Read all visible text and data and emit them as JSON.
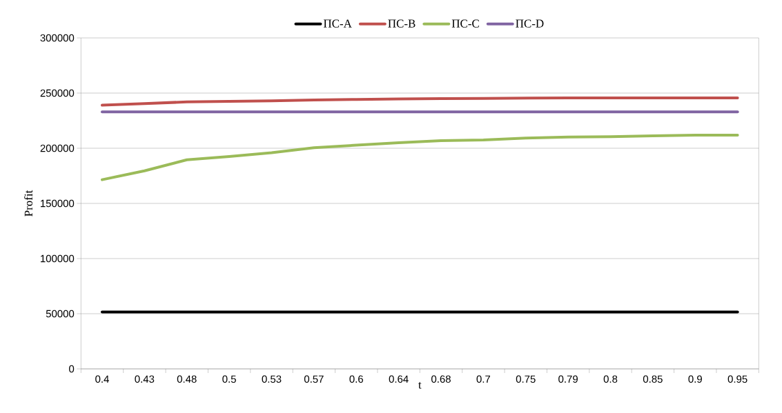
{
  "chart_data": {
    "type": "line",
    "xlabel": "t",
    "ylabel": "Profit",
    "categories": [
      "0.4",
      "0.43",
      "0.48",
      "0.5",
      "0.53",
      "0.57",
      "0.6",
      "0.64",
      "0.68",
      "0.7",
      "0.75",
      "0.79",
      "0.8",
      "0.85",
      "0.9",
      "0.95"
    ],
    "series": [
      {
        "name": "ПС-A",
        "color": "#000000",
        "values": [
          51500,
          51500,
          51500,
          51500,
          51500,
          51500,
          51500,
          51500,
          51500,
          51500,
          51500,
          51500,
          51500,
          51500,
          51500,
          51500
        ]
      },
      {
        "name": "ПС-B",
        "color": "#c0504d",
        "values": [
          239000,
          240500,
          242000,
          242500,
          243000,
          243800,
          244200,
          244700,
          245000,
          245200,
          245400,
          245600,
          245700,
          245700,
          245700,
          245700
        ]
      },
      {
        "name": "ПС-C",
        "color": "#9bbb59",
        "values": [
          171500,
          179500,
          189500,
          192500,
          196000,
          200500,
          202800,
          205000,
          206800,
          207500,
          209200,
          210200,
          210500,
          211200,
          211800,
          211800
        ]
      },
      {
        "name": "ПС-D",
        "color": "#8064a2",
        "values": [
          233000,
          233000,
          233000,
          233000,
          233000,
          233000,
          233000,
          233000,
          233000,
          233000,
          233000,
          233000,
          233000,
          233000,
          233000,
          233000
        ]
      }
    ],
    "ylim": [
      0,
      300000
    ],
    "yticks": [
      0,
      50000,
      100000,
      150000,
      200000,
      250000,
      300000
    ],
    "grid": "y",
    "legend": "top",
    "marker": "none",
    "line_style": "solid"
  }
}
